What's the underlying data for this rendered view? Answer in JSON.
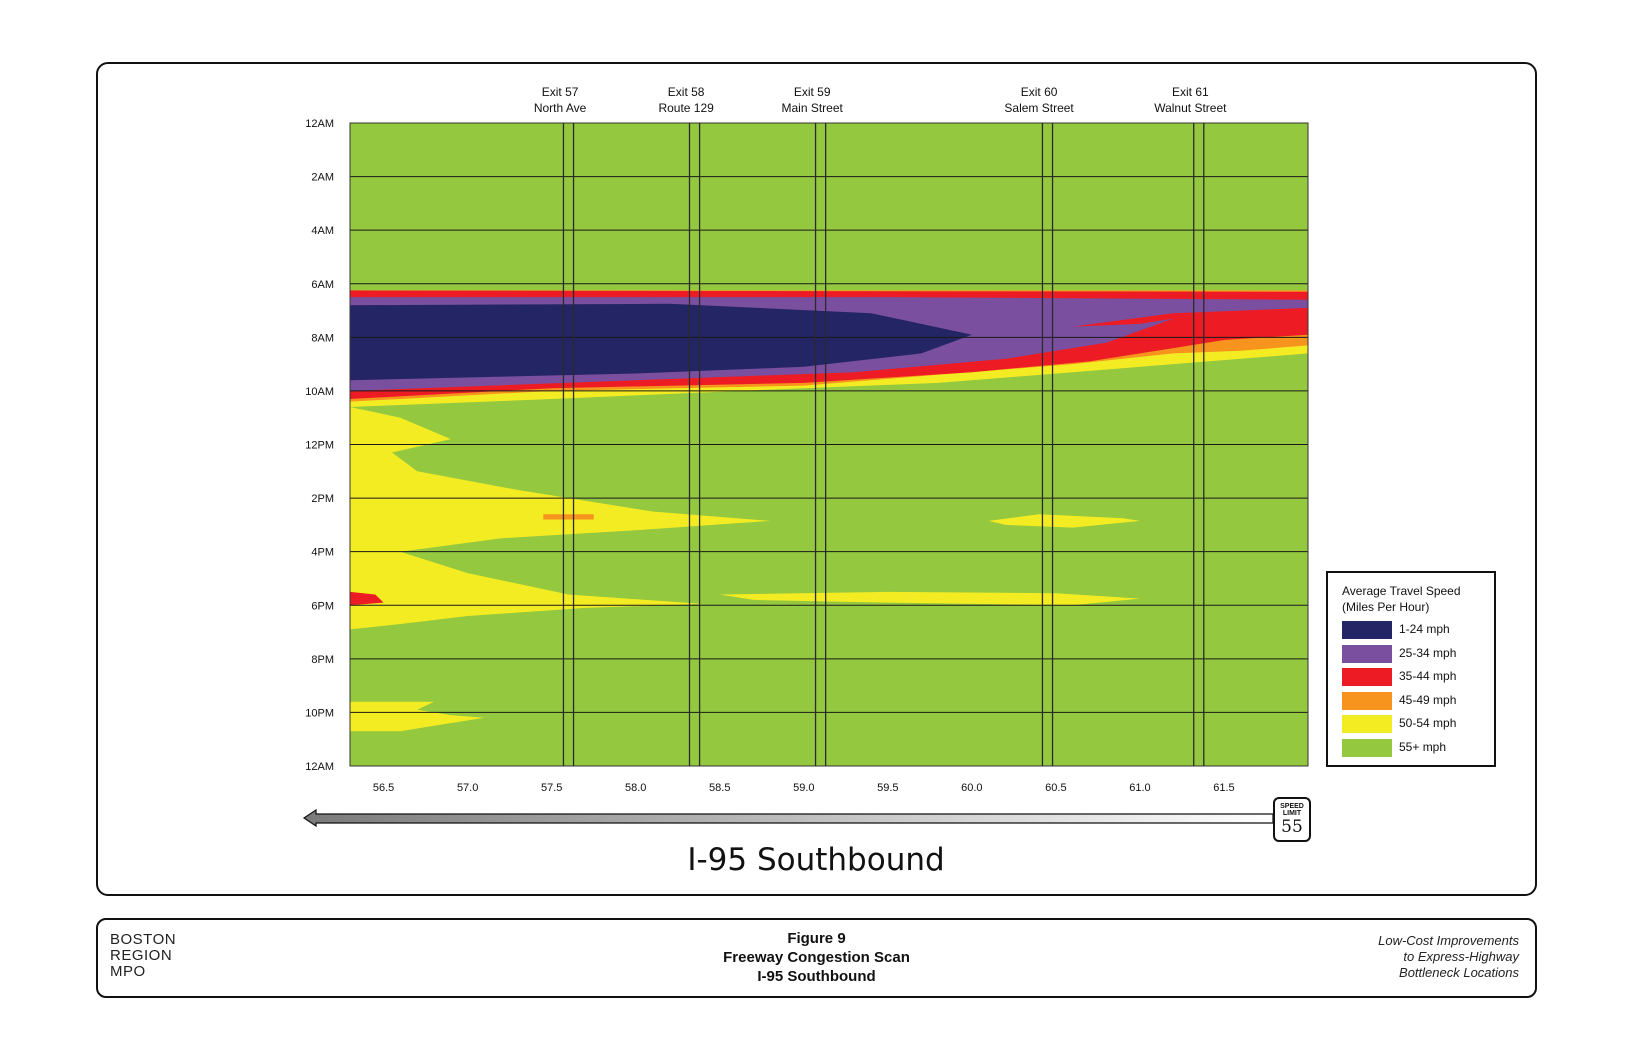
{
  "chart_data": {
    "type": "heatmap",
    "title": "I-95 Southbound",
    "x_axis": {
      "range": [
        56.3,
        62.0
      ],
      "ticks": [
        "56.5",
        "57.0",
        "57.5",
        "58.0",
        "58.5",
        "59.0",
        "59.5",
        "60.0",
        "60.5",
        "61.0",
        "61.5"
      ],
      "tick_values": [
        56.5,
        57.0,
        57.5,
        58.0,
        58.5,
        59.0,
        59.5,
        60.0,
        60.5,
        61.0,
        61.5
      ]
    },
    "y_axis": {
      "range": [
        0,
        24
      ],
      "ticks": [
        "12AM",
        "2AM",
        "4AM",
        "6AM",
        "8AM",
        "10AM",
        "12PM",
        "2PM",
        "4PM",
        "6PM",
        "8PM",
        "10PM",
        "12AM"
      ],
      "tick_values": [
        0,
        2,
        4,
        6,
        8,
        10,
        12,
        14,
        16,
        18,
        20,
        22,
        24
      ]
    },
    "exits": [
      {
        "name": "Exit 57",
        "street": "North Ave",
        "mile": 57.6
      },
      {
        "name": "Exit 58",
        "street": "Route 129",
        "mile": 58.35
      },
      {
        "name": "Exit 59",
        "street": "Main Street",
        "mile": 59.1
      },
      {
        "name": "Exit 60",
        "street": "Salem Street",
        "mile": 60.45
      },
      {
        "name": "Exit 61",
        "street": "Walnut Street",
        "mile": 61.35
      }
    ],
    "legend": {
      "title_line1": "Average Travel Speed",
      "title_line2": "(Miles Per Hour)",
      "placement": "right",
      "categories": [
        {
          "label": "1-24 mph",
          "color": "#242565"
        },
        {
          "label": "25-34 mph",
          "color": "#7a4f9f"
        },
        {
          "label": "35-44 mph",
          "color": "#ed1c24"
        },
        {
          "label": "45-49 mph",
          "color": "#f7941d"
        },
        {
          "label": "50-54 mph",
          "color": "#f4ec22"
        },
        {
          "label": "55+ mph",
          "color": "#94c83f"
        }
      ]
    },
    "speed_limit": {
      "label_line1": "SPEED",
      "label_line2": "LIMIT",
      "value": "55"
    },
    "congestion_regions": [
      {
        "category": "25-34 mph",
        "start_hour": 6.3,
        "end_hour": 10.0,
        "from_mile": 56.3,
        "to_mile": 61.2
      },
      {
        "category": "1-24 mph",
        "start_hour": 6.8,
        "end_hour": 9.6,
        "from_mile": 56.3,
        "to_mile": 60.0
      },
      {
        "category": "50-54 mph",
        "start_hour": 10.6,
        "end_hour": 18.9,
        "from_mile": 56.3,
        "to_mile": 58.8
      },
      {
        "category": "50-54 mph",
        "start_hour": 17.5,
        "end_hour": 18.0,
        "from_mile": 58.5,
        "to_mile": 61.0
      },
      {
        "category": "50-54 mph",
        "start_hour": 14.6,
        "end_hour": 15.1,
        "from_mile": 60.1,
        "to_mile": 61.0
      },
      {
        "category": "50-54 mph",
        "start_hour": 21.6,
        "end_hour": 22.7,
        "from_mile": 56.3,
        "to_mile": 57.1
      }
    ]
  },
  "footer": {
    "org": [
      "BOSTON",
      "REGION",
      "MPO"
    ],
    "figure_number": "Figure 9",
    "figure_title": "Freeway Congestion Scan",
    "figure_subtitle": "I-95 Southbound",
    "project": [
      "Low-Cost Improvements",
      "to Express-Highway",
      "Bottleneck Locations"
    ]
  },
  "colors": {
    "grid": "#1a1a1a",
    "frame": "#111111",
    "background": "#ffffff"
  }
}
